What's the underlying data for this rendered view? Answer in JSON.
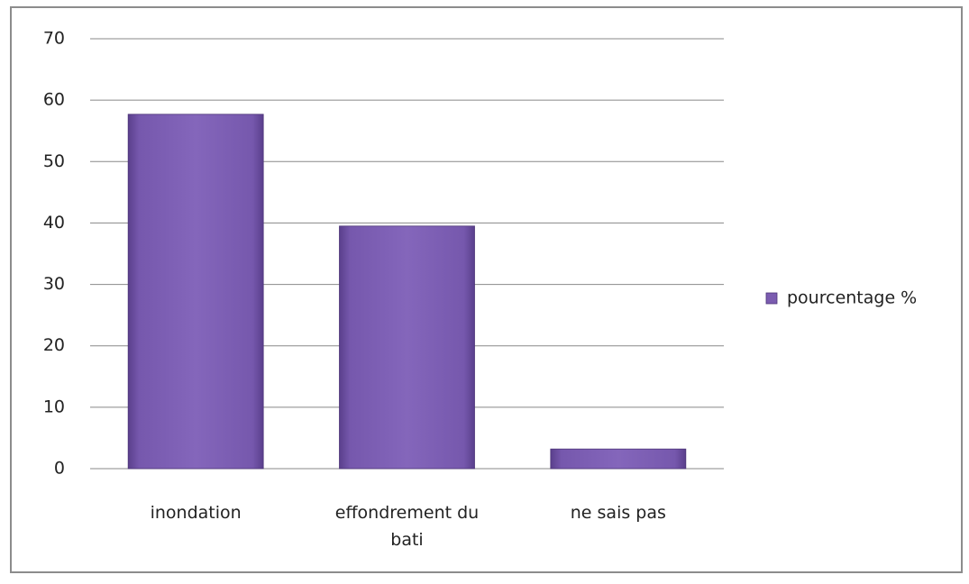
{
  "chart_data": {
    "type": "bar",
    "categories": [
      "inondation",
      "effondrement du bati",
      "ne sais pas"
    ],
    "series": [
      {
        "name": "pourcentage %",
        "color": "#7b5cb0",
        "values": [
          57.7,
          39.5,
          3.2
        ]
      }
    ],
    "ylim": [
      0,
      70
    ],
    "yticks": [
      0,
      10,
      20,
      30,
      40,
      50,
      60,
      70
    ],
    "grid": true,
    "legend": "right"
  }
}
